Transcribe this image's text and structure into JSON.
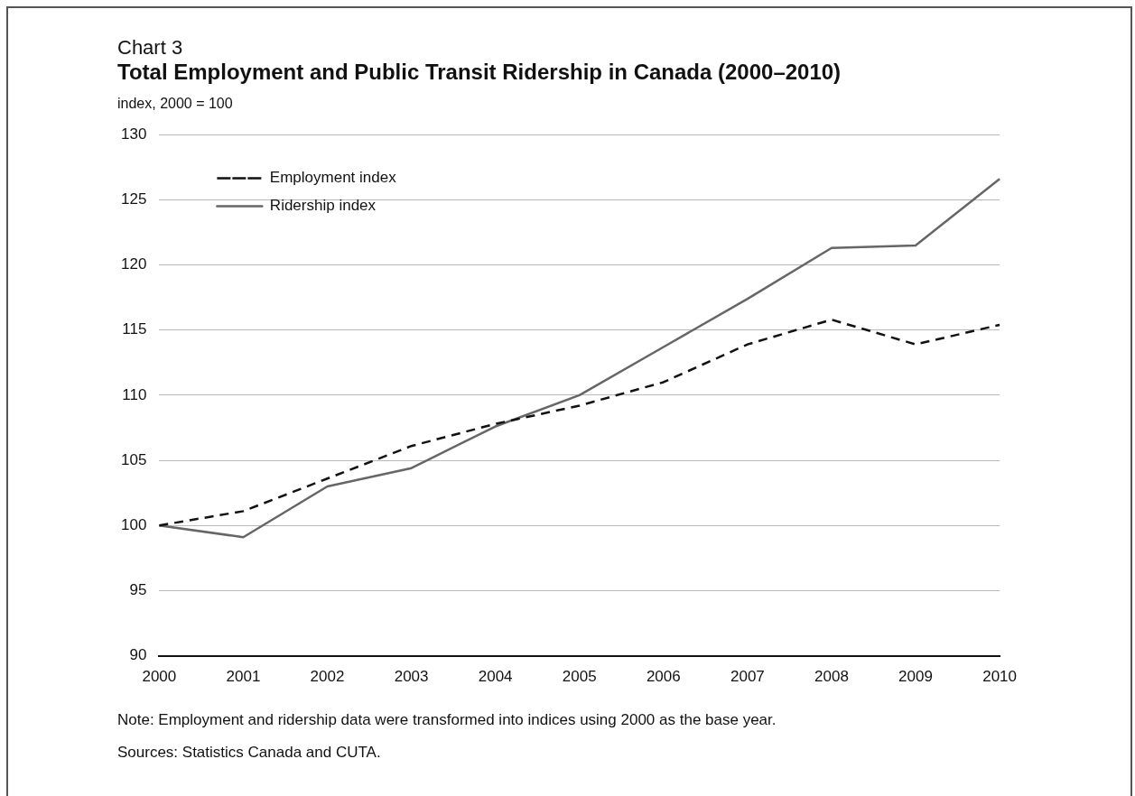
{
  "chart_data": {
    "type": "line",
    "title": "Total Employment and Public Transit Ridership in Canada (2000–2010)",
    "subtitle": "Chart 3",
    "ylabel": "index, 2000 = 100",
    "categories": [
      "2000",
      "2001",
      "2002",
      "2003",
      "2004",
      "2005",
      "2006",
      "2007",
      "2008",
      "2009",
      "2010"
    ],
    "series": [
      {
        "name": "Employment index",
        "color": "#111111",
        "line_style": "dashed",
        "values": [
          100,
          101.1,
          103.6,
          106.1,
          107.8,
          109.2,
          111.0,
          113.9,
          115.8,
          113.9,
          115.4
        ]
      },
      {
        "name": "Ridership index",
        "color": "#666666",
        "line_style": "solid",
        "values": [
          100,
          99.1,
          103.0,
          104.4,
          107.6,
          110.0,
          113.7,
          117.4,
          121.3,
          121.5,
          126.6
        ]
      }
    ],
    "ylim": [
      90,
      130
    ],
    "yticks": [
      90,
      95,
      100,
      105,
      110,
      115,
      120,
      125,
      130
    ],
    "grid": "y",
    "legend": "top left",
    "marker": "none",
    "annotations": [
      "Note: Employment and ridership data were transformed into indices using 2000 as the base year.",
      "Sources: Statistics Canada and CUTA."
    ]
  }
}
